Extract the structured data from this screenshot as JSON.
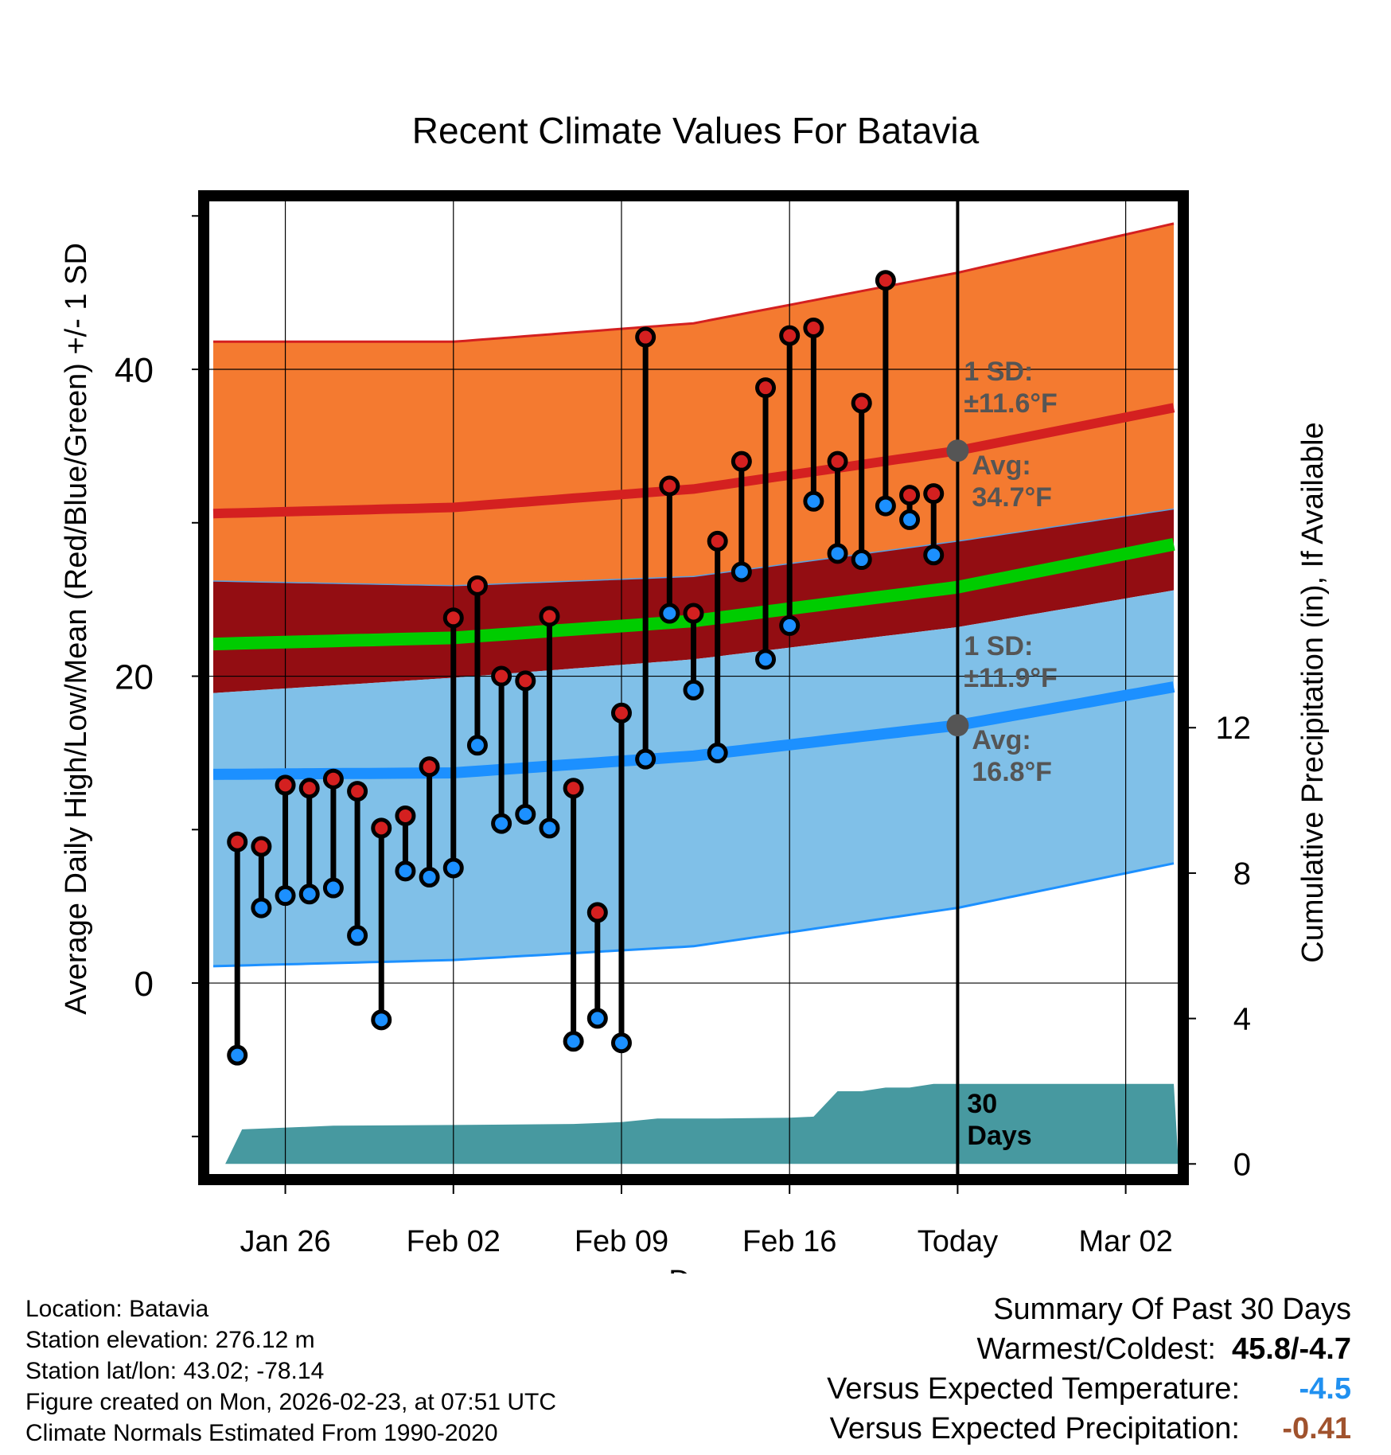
{
  "chart_data": {
    "type": "line",
    "title": "Recent Climate Values For Batavia",
    "xlabel": "Day",
    "ylabel": "Average Daily High/Low/Mean (Red/Blue/Green) +/- 1 SD",
    "y2label": "Cumulative Precipitation (in), If Available",
    "xlim": [
      -0.2,
      40.2
    ],
    "ylim": [
      -12.5,
      51
    ],
    "y2lim": [
      -0.3,
      26.5
    ],
    "xticks": [
      {
        "x": 3,
        "label": "Jan 26"
      },
      {
        "x": 10,
        "label": "Feb 02"
      },
      {
        "x": 17,
        "label": "Feb 09"
      },
      {
        "x": 24,
        "label": "Feb 16"
      },
      {
        "x": 31,
        "label": "Today"
      },
      {
        "x": 38,
        "label": "Mar 02"
      }
    ],
    "yticks": [
      0,
      20,
      40
    ],
    "y2ticks": [
      0,
      4,
      8,
      12
    ],
    "today_x": 31,
    "days": [
      1,
      2,
      3,
      4,
      5,
      6,
      7,
      8,
      9,
      10,
      11,
      12,
      13,
      14,
      15,
      16,
      17,
      18,
      19,
      20,
      21,
      22,
      23,
      24,
      25,
      26,
      27,
      28,
      29,
      30
    ],
    "highs": [
      9.2,
      8.9,
      12.9,
      12.7,
      13.3,
      12.5,
      10.1,
      10.9,
      14.1,
      23.8,
      25.9,
      20.0,
      19.7,
      23.9,
      12.7,
      4.6,
      17.6,
      42.1,
      32.4,
      24.1,
      28.8,
      34.0,
      38.8,
      42.2,
      42.7,
      34.0,
      37.8,
      45.8,
      31.8,
      31.9
    ],
    "lows": [
      -4.7,
      4.9,
      5.7,
      5.8,
      6.2,
      3.1,
      -2.4,
      7.3,
      6.9,
      7.5,
      15.5,
      10.4,
      11.0,
      10.1,
      -3.8,
      -2.3,
      -3.9,
      14.6,
      24.1,
      19.1,
      15.0,
      26.8,
      21.1,
      23.3,
      31.4,
      28.0,
      27.6,
      31.1,
      30.2,
      27.9
    ],
    "series": [
      {
        "name": "Normal High",
        "x": [
          0,
          10,
          20,
          31,
          40
        ],
        "values": [
          30.6,
          31.0,
          32.2,
          34.7,
          37.5
        ]
      },
      {
        "name": "Normal High +1 SD",
        "x": [
          0,
          10,
          20,
          31,
          40
        ],
        "values": [
          41.8,
          41.8,
          43.0,
          46.3,
          49.5
        ]
      },
      {
        "name": "Normal High -1 SD",
        "x": [
          0,
          10,
          20,
          31,
          40
        ],
        "values": [
          26.2,
          25.9,
          26.5,
          28.8,
          30.9
        ]
      },
      {
        "name": "Normal Mean",
        "x": [
          0,
          10,
          20,
          31,
          40
        ],
        "values": [
          22.1,
          22.5,
          23.6,
          25.8,
          28.6
        ]
      },
      {
        "name": "Normal Mean +1 SD",
        "x": [
          0,
          10,
          20,
          31,
          40
        ],
        "values": [
          26.2,
          25.9,
          26.5,
          28.8,
          30.9
        ]
      },
      {
        "name": "Normal Mean -1 SD",
        "x": [
          0,
          10,
          20,
          31,
          40
        ],
        "values": [
          18.9,
          19.9,
          21.1,
          23.2,
          25.6
        ]
      },
      {
        "name": "Normal Low",
        "x": [
          0,
          10,
          20,
          31,
          40
        ],
        "values": [
          13.6,
          13.7,
          14.8,
          16.8,
          19.3
        ]
      },
      {
        "name": "Normal Low +1 SD",
        "x": [
          0,
          10,
          20,
          31,
          40
        ],
        "values": [
          18.9,
          19.9,
          21.1,
          23.2,
          25.6
        ]
      },
      {
        "name": "Normal Low -1 SD",
        "x": [
          0,
          10,
          20,
          31,
          40
        ],
        "values": [
          1.1,
          1.5,
          2.4,
          4.9,
          7.8
        ]
      },
      {
        "name": "Cumulative Precipitation",
        "x": [
          0.5,
          1.2,
          5,
          10,
          15,
          17,
          18.5,
          21,
          24,
          25,
          26,
          27,
          28,
          29,
          30,
          31,
          40
        ],
        "values": [
          0,
          0.95,
          1.05,
          1.07,
          1.1,
          1.15,
          1.25,
          1.25,
          1.27,
          1.3,
          2.0,
          2.0,
          2.1,
          2.1,
          2.2,
          2.2,
          2.2
        ]
      }
    ],
    "annotations": {
      "high_sd_label": "1 SD:",
      "high_sd_value": "±11.6°F",
      "high_avg_label": "Avg:",
      "high_avg_value": "34.7°F",
      "low_sd_label": "1 SD:",
      "low_sd_value": "±11.9°F",
      "low_avg_label": "Avg:",
      "low_avg_value": "16.8°F",
      "high_avg_marker": 34.7,
      "low_avg_marker": 16.8,
      "precip_days_line1": "30",
      "precip_days_line2": "Days"
    },
    "colors": {
      "high_band": "#f47a30",
      "high_line": "#d42020",
      "mean_band": "#930d12",
      "mean_line": "#00cc00",
      "low_band": "#80c0e8",
      "low_line": "#1c90ff",
      "precip": "#4799a0",
      "high_dot": "#d42020",
      "low_dot": "#1c90ff"
    }
  },
  "footer": {
    "location": "Location: Batavia",
    "elevation": "Station elevation: 276.12 m",
    "latlon": "Station lat/lon: 43.02; -78.14",
    "created": "Figure created on Mon, 2026-02-23, at 07:51 UTC",
    "normals": "Climate Normals Estimated From 1990-2020"
  },
  "summary": {
    "title": "Summary Of Past 30 Days",
    "warmest_coldest_label": "Warmest/Coldest:",
    "warmest_coldest_value": "45.8/-4.7",
    "temp_label": "Versus Expected Temperature:",
    "temp_value": "-4.5",
    "temp_color": "#2090f0",
    "precip_label": "Versus Expected Precipitation:",
    "precip_value": "-0.41",
    "precip_color": "#a0522d"
  }
}
